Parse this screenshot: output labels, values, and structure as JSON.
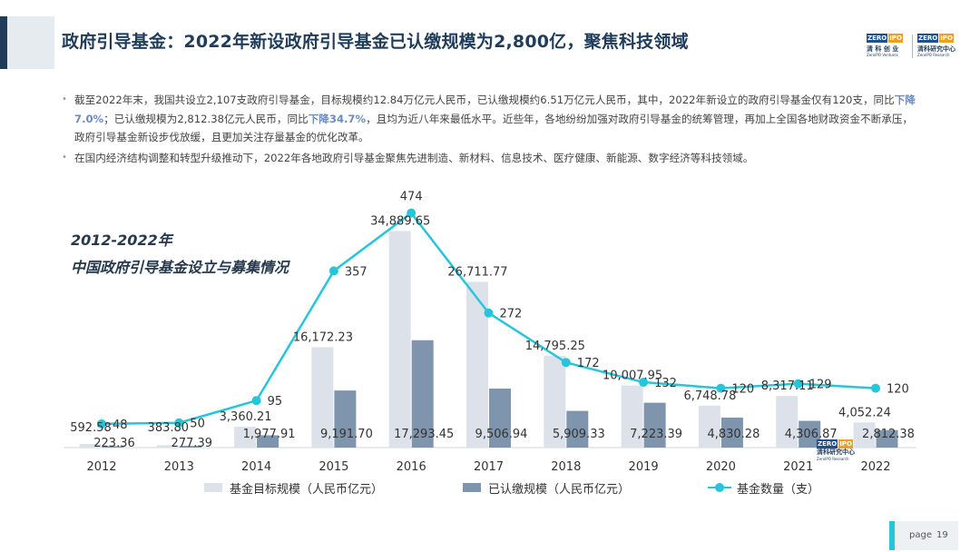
{
  "header": {
    "title": "政府引导基金：2022年新设政府引导基金已认缴规模为2,800亿，聚焦科技领域"
  },
  "logos": [
    {
      "code_a": "ZERO",
      "code_b": "IPO",
      "cn": "清 科 创 业",
      "en": "ZeroIPO Ventures"
    },
    {
      "code_a": "ZERO",
      "code_b": "IPO",
      "cn": "清科研究中心",
      "en": "ZeroIPO Research"
    }
  ],
  "bullets": [
    {
      "t1": "截至2022年末，我国共设立2,107支政府引导基金，目标规模约12.84万亿元人民币，已认缴规模约6.51万亿元人民币，其中，2022年新设立的政府引导基金仅有120支，同比",
      "h1": "下降7.0%",
      "t2": "；已认缴规模为2,812.38亿元人民币，同比",
      "h2": "下降34.7%",
      "t3": "，且均为近八年来最低水平。近些年，各地纷纷加强对政府引导基金的统筹管理，再加上全国各地财政资金不断承压，政府引导基金新设步伐放缓，且更加关注存量基金的优化改革。"
    },
    {
      "t1": "在国内经济结构调整和转型升级推动下，2022年各地政府引导基金聚焦先进制造、新材料、信息技术、医疗健康、新能源、数字经济等科技领域。"
    }
  ],
  "chart_title_lines": [
    "2012-2022年",
    "中国政府引导基金设立与募集情况"
  ],
  "chart_data": {
    "type": "bar",
    "categories": [
      "2012",
      "2013",
      "2014",
      "2015",
      "2016",
      "2017",
      "2018",
      "2019",
      "2020",
      "2021",
      "2022"
    ],
    "series": [
      {
        "name": "基金目标规模（人民币亿元）",
        "kind": "bar",
        "color": "#dde2ea",
        "values": [
          592.58,
          383.8,
          3360.21,
          16172.23,
          34889.65,
          26711.77,
          14795.25,
          10007.95,
          6748.78,
          8317.11,
          4052.24
        ],
        "labels": [
          "592.58",
          "383.80",
          "3,360.21",
          "16,172.23",
          "34,889.65",
          "26,711.77",
          "14,795.25",
          "10,007.95",
          "6,748.78",
          "8,317.11",
          "4,052.24"
        ]
      },
      {
        "name": "已认缴规模（人民币亿元）",
        "kind": "bar",
        "color": "#7f94ad",
        "values": [
          223.36,
          277.39,
          1977.91,
          9191.7,
          17293.45,
          9506.94,
          5909.33,
          7223.39,
          4830.28,
          4306.87,
          2812.38
        ],
        "labels": [
          "223.36",
          "277.39",
          "1,977.91",
          "9,191.70",
          "17,293.45",
          "9,506.94",
          "5,909.33",
          "7,223.39",
          "4,830.28",
          "4,306.87",
          "2,812.38"
        ]
      },
      {
        "name": "基金数量（支）",
        "kind": "line",
        "color": "#26c6da",
        "values": [
          48,
          50,
          95,
          357,
          474,
          272,
          172,
          132,
          120,
          129,
          120
        ],
        "labels": [
          "48",
          "50",
          "95",
          "357",
          "474",
          "272",
          "172",
          "132",
          "120",
          "129",
          "120"
        ]
      }
    ],
    "bar_ylim": [
      0,
      37000
    ],
    "line_ylim": [
      0,
      510
    ]
  },
  "watermark": {
    "code_a": "ZERO",
    "code_b": "IPO",
    "cn": "清科研究中心",
    "en": "ZeroIPO Research"
  },
  "footer": {
    "page_label": "page",
    "page_number": "19"
  }
}
